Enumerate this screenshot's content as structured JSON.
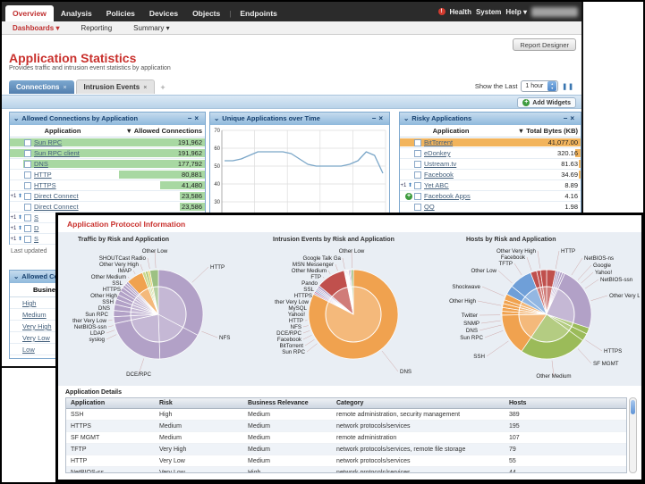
{
  "colors": {
    "accent_red": "#c9302c",
    "nav_bg": "#2b2b2b",
    "widget_border": "#7fa9cf",
    "bar_green": "#a8d8a2",
    "bar_orange": "#f2b45c",
    "link": "#44607c",
    "line_blue": "#7aa6c8",
    "pie_purple": "#b2a1c7",
    "pie_orange": "#f0a24f",
    "pie_red": "#c0504d",
    "pie_green": "#9bbb59",
    "pie_blue": "#6f9fd8"
  },
  "icons": {
    "collapse": "⌄",
    "minimize": "−",
    "close": "×",
    "add": "+",
    "up_arrow": "⬆",
    "pause": "❚❚",
    "health_alert": "!",
    "stepper_up": "▴",
    "stepper_down": "▾",
    "sort_desc": "▼"
  },
  "nav": {
    "tabs": [
      "Overview",
      "Analysis",
      "Policies",
      "Devices",
      "Objects",
      "Endpoints"
    ],
    "active_tab": "Overview",
    "right": {
      "health": "Health",
      "system": "System",
      "help": "Help ▾"
    }
  },
  "subnav": {
    "items": [
      "Dashboards ▾",
      "Reporting",
      "Summary ▾"
    ],
    "active": "Dashboards ▾"
  },
  "report_designer": "Report Designer",
  "page": {
    "title": "Application Statistics",
    "subtitle": "Provides traffic and intrusion event statistics by application"
  },
  "tabbar": {
    "tabs": [
      {
        "label": "Connections",
        "active": true
      },
      {
        "label": "Intrusion Events",
        "active": false
      }
    ]
  },
  "timebar": {
    "label": "Show the Last",
    "value": "1 hour"
  },
  "add_widgets": "Add Widgets",
  "widgets": {
    "allowed": {
      "title": "Allowed Connections by Application",
      "columns": {
        "app": "Application",
        "value": "▼ Allowed Connections"
      },
      "rows": [
        {
          "prefix": "",
          "app": "Sun RPC",
          "value": "191,962",
          "bar": 100
        },
        {
          "prefix": "",
          "app": "Sun RPC client",
          "value": "191,962",
          "bar": 100
        },
        {
          "prefix": "",
          "app": "DNS",
          "value": "177,792",
          "bar": 93
        },
        {
          "prefix": "",
          "app": "HTTP",
          "value": "80,881",
          "bar": 44
        },
        {
          "prefix": "",
          "app": "HTTPS",
          "value": "41,480",
          "bar": 23
        },
        {
          "prefix": "+1",
          "app": "Direct Connect",
          "value": "23,586",
          "bar": 13
        },
        {
          "prefix": "",
          "app": "Direct Connect",
          "value": "23,586",
          "bar": 13
        },
        {
          "prefix": "+1",
          "app": "S",
          "value": "",
          "bar": 0
        },
        {
          "prefix": "+1",
          "app": "D",
          "value": "",
          "bar": 0
        },
        {
          "prefix": "+1",
          "app": "S",
          "value": "",
          "bar": 0
        }
      ]
    },
    "unique": {
      "title": "Unique Applications over Time"
    },
    "risky": {
      "title": "Risky Applications",
      "columns": {
        "app": "Application",
        "value": "▼ Total Bytes (KB)"
      },
      "rows": [
        {
          "prefix": "",
          "app": "BitTorrent",
          "value": "41,077.00",
          "bar": 100
        },
        {
          "prefix": "",
          "app": "eDonkey",
          "value": "320.16",
          "bar": 3
        },
        {
          "prefix": "",
          "app": "Ustream.tv",
          "value": "81.63",
          "bar": 1
        },
        {
          "prefix": "",
          "app": "Facebook",
          "value": "34.69",
          "bar": 1
        },
        {
          "prefix": "+1",
          "app": "Yet ABC",
          "value": "8.89",
          "bar": 0
        },
        {
          "prefix": "add",
          "app": "Facebook Apps",
          "value": "4.16",
          "bar": 0
        },
        {
          "prefix": "",
          "app": "QQ",
          "value": "1.98",
          "bar": 0
        }
      ]
    },
    "business": {
      "title": "Allowed Connections",
      "column": "Business Relevance",
      "rows": [
        "High",
        "Medium",
        "Very High",
        "Very Low",
        "Low"
      ]
    },
    "last_updated": "Last updated"
  },
  "overlay": {
    "title": "Application Protocol Information",
    "details_title": "Application Details",
    "details": {
      "columns": [
        "Application",
        "Risk",
        "Business Relevance",
        "Category",
        "Hosts"
      ],
      "rows": [
        [
          "SSH",
          "High",
          "Medium",
          "remote administration, security management",
          "389"
        ],
        [
          "HTTPS",
          "Medium",
          "Medium",
          "network protocols/services",
          "195"
        ],
        [
          "SF MGMT",
          "Medium",
          "Medium",
          "remote administration",
          "107"
        ],
        [
          "TFTP",
          "Very High",
          "Medium",
          "network protocols/services, remote file storage",
          "79"
        ],
        [
          "HTTP",
          "Very Low",
          "Medium",
          "network protocols/services",
          "55"
        ],
        [
          "NetBIOS-ss",
          "Very Low",
          "High",
          "network protocols/services",
          "44"
        ]
      ]
    }
  },
  "chart_data": [
    {
      "type": "line",
      "title": "Unique Applications over Time",
      "xlabel": "",
      "ylabel": "",
      "ylim": [
        10,
        70
      ],
      "yticks": [
        10,
        20,
        30,
        40,
        50,
        60,
        70
      ],
      "grid": true,
      "values": [
        53,
        53,
        54,
        56,
        58,
        58,
        58,
        58,
        57,
        54,
        51,
        50,
        50,
        50,
        50,
        51,
        53,
        58,
        56,
        46
      ]
    },
    {
      "type": "pie",
      "title": "Traffic by Risk and Application",
      "value_unit": "degrees",
      "slices": [
        {
          "label": "HTTP",
          "value": 118,
          "color": "#b2a1c7"
        },
        {
          "label": "NFS",
          "value": 60,
          "color": "#b2a1c7"
        },
        {
          "label": "DCE/RPC",
          "value": 80,
          "color": "#b2a1c7"
        },
        {
          "label": "syslog",
          "value": 9,
          "color": "#b2a1c7"
        },
        {
          "label": "LDAP",
          "value": 8,
          "color": "#b2a1c7"
        },
        {
          "label": "NetBIOS-ssn",
          "value": 8,
          "color": "#b2a1c7"
        },
        {
          "label": "ther Very Low",
          "value": 7,
          "color": "#b2a1c7"
        },
        {
          "label": "Sun RPC",
          "value": 6,
          "color": "#b2a1c7"
        },
        {
          "label": "DNS",
          "value": 6,
          "color": "#b2a1c7"
        },
        {
          "label": "SSH",
          "value": 5,
          "color": "#b2a1c7"
        },
        {
          "label": "Other High",
          "value": 4,
          "color": "#b2a1c7"
        },
        {
          "label": "HTTPS",
          "value": 3,
          "color": "#b2a1c7"
        },
        {
          "label": "SSL",
          "value": 3,
          "color": "#b2a1c7"
        },
        {
          "label": "Other Medium",
          "value": 22,
          "color": "#f0a24f"
        },
        {
          "label": "IMAP",
          "value": 4,
          "color": "#cbd98d"
        },
        {
          "label": "Other Very High",
          "value": 3,
          "color": "#a8c26a"
        },
        {
          "label": "SHOUTCast Radio",
          "value": 3,
          "color": "#e3d36e"
        },
        {
          "label": "Other Low",
          "value": 11,
          "color": "#9dc183"
        }
      ],
      "labels": [
        {
          "text": "Other Low",
          "x": 106,
          "y": 7,
          "anchor": "middle"
        },
        {
          "text": "SHOUTCast Radio",
          "x": 96,
          "y": 15,
          "anchor": "end"
        },
        {
          "text": "Other Very High",
          "x": 88,
          "y": 22,
          "anchor": "end"
        },
        {
          "text": "IMAP",
          "x": 80,
          "y": 29,
          "anchor": "end"
        },
        {
          "text": "Other Medium",
          "x": 74,
          "y": 36,
          "anchor": "end"
        },
        {
          "text": "SSL",
          "x": 70,
          "y": 43,
          "anchor": "end"
        },
        {
          "text": "HTTPS",
          "x": 68,
          "y": 50,
          "anchor": "end"
        },
        {
          "text": "Other High",
          "x": 64,
          "y": 57,
          "anchor": "end"
        },
        {
          "text": "SSH",
          "x": 60,
          "y": 64,
          "anchor": "end"
        },
        {
          "text": "DNS",
          "x": 56,
          "y": 71,
          "anchor": "end"
        },
        {
          "text": "Sun RPC",
          "x": 54,
          "y": 78,
          "anchor": "end"
        },
        {
          "text": "ther Very Low",
          "x": 52,
          "y": 85,
          "anchor": "end"
        },
        {
          "text": "NetBIOS-ssn",
          "x": 52,
          "y": 92,
          "anchor": "end"
        },
        {
          "text": "LDAP",
          "x": 50,
          "y": 99,
          "anchor": "end"
        },
        {
          "text": "syslog",
          "x": 50,
          "y": 106,
          "anchor": "end"
        },
        {
          "text": "HTTP",
          "x": 168,
          "y": 25,
          "anchor": "start"
        },
        {
          "text": "NFS",
          "x": 178,
          "y": 104,
          "anchor": "start"
        },
        {
          "text": "DCE/RPC",
          "x": 88,
          "y": 145,
          "anchor": "middle"
        }
      ]
    },
    {
      "type": "pie",
      "title": "Intrusion Events by Risk and Application",
      "value_unit": "degrees",
      "slices": [
        {
          "label": "DNS",
          "value": 297,
          "color": "#f0a24f"
        },
        {
          "label": "Sun RPC",
          "value": 2,
          "color": "#b2a1c7"
        },
        {
          "label": "BitTorrent",
          "value": 2,
          "color": "#c97ba4"
        },
        {
          "label": "Facebook",
          "value": 2,
          "color": "#8aa9d6"
        },
        {
          "label": "DCE/RPC",
          "value": 2,
          "color": "#b2a1c7"
        },
        {
          "label": "NFS",
          "value": 2,
          "color": "#b2a1c7"
        },
        {
          "label": "HTTP",
          "value": 3,
          "color": "#b2a1c7"
        },
        {
          "label": "FTP",
          "value": 38,
          "color": "#c0504d"
        },
        {
          "label": "Pando",
          "value": 1,
          "color": "#b2a1c7"
        },
        {
          "label": "SSL",
          "value": 1,
          "color": "#b2a1c7"
        },
        {
          "label": "HTTPS",
          "value": 1,
          "color": "#b2a1c7"
        },
        {
          "label": "MySQL",
          "value": 1,
          "color": "#b2a1c7"
        },
        {
          "label": "Yahoo!",
          "value": 1,
          "color": "#b2a1c7"
        },
        {
          "label": "Other Medium",
          "value": 1,
          "color": "#e8c06a"
        },
        {
          "label": "MSN Messenger",
          "value": 1.5,
          "color": "#b2a1c7"
        },
        {
          "label": "Google Talk Ga",
          "value": 1.5,
          "color": "#b070b0"
        },
        {
          "label": "Other Low",
          "value": 3,
          "color": "#9dc183"
        }
      ],
      "labels": [
        {
          "text": "Other Low",
          "x": 108,
          "y": 7,
          "anchor": "middle"
        },
        {
          "text": "Google Talk Ga",
          "x": 96,
          "y": 15,
          "anchor": "end"
        },
        {
          "text": "MSN Messenger",
          "x": 88,
          "y": 22,
          "anchor": "end"
        },
        {
          "text": "Other Medium",
          "x": 80,
          "y": 29,
          "anchor": "end"
        },
        {
          "text": "FTP",
          "x": 74,
          "y": 36,
          "anchor": "end"
        },
        {
          "text": "Pando",
          "x": 70,
          "y": 43,
          "anchor": "end"
        },
        {
          "text": "SSL",
          "x": 66,
          "y": 50,
          "anchor": "end"
        },
        {
          "text": "HTTPS",
          "x": 64,
          "y": 57,
          "anchor": "end"
        },
        {
          "text": "ther Very Low",
          "x": 60,
          "y": 64,
          "anchor": "end"
        },
        {
          "text": "MySQL",
          "x": 58,
          "y": 71,
          "anchor": "end"
        },
        {
          "text": "Yahoo!",
          "x": 56,
          "y": 78,
          "anchor": "end"
        },
        {
          "text": "HTTP",
          "x": 54,
          "y": 85,
          "anchor": "end"
        },
        {
          "text": "NFS",
          "x": 52,
          "y": 92,
          "anchor": "end"
        },
        {
          "text": "DCE/RPC",
          "x": 52,
          "y": 99,
          "anchor": "end"
        },
        {
          "text": "Facebook",
          "x": 52,
          "y": 106,
          "anchor": "end"
        },
        {
          "text": "BitTorrent",
          "x": 54,
          "y": 113,
          "anchor": "end"
        },
        {
          "text": "Sun RPC",
          "x": 56,
          "y": 120,
          "anchor": "end"
        },
        {
          "text": "DNS",
          "x": 162,
          "y": 142,
          "anchor": "start"
        }
      ]
    },
    {
      "type": "pie",
      "title": "Hosts by Risk and Application",
      "value_unit": "degrees",
      "slices": [
        {
          "label": "HTTP",
          "value": 12,
          "color": "#c0504d"
        },
        {
          "label": "NetBIOS-ns",
          "value": 3,
          "color": "#b2a1c7"
        },
        {
          "label": "Google",
          "value": 3,
          "color": "#b2a1c7"
        },
        {
          "label": "Yahoo!",
          "value": 3,
          "color": "#b2a1c7"
        },
        {
          "label": "NetBIOS-ssn",
          "value": 3,
          "color": "#b2a1c7"
        },
        {
          "label": "Other Very Low",
          "value": 84,
          "color": "#b2a1c7"
        },
        {
          "label": "HTTPS",
          "value": 8,
          "color": "#9bbb59"
        },
        {
          "label": "SF MGMT",
          "value": 10,
          "color": "#9bbb59"
        },
        {
          "label": "Other Medium",
          "value": 88,
          "color": "#9bbb59"
        },
        {
          "label": "SSH",
          "value": 55,
          "color": "#f0a24f"
        },
        {
          "label": "Sun RPC",
          "value": 5,
          "color": "#f0a24f"
        },
        {
          "label": "DNS",
          "value": 5,
          "color": "#f0a24f"
        },
        {
          "label": "SNMP",
          "value": 5,
          "color": "#f0a24f"
        },
        {
          "label": "Twitter",
          "value": 5,
          "color": "#f0a24f"
        },
        {
          "label": "Other High",
          "value": 8,
          "color": "#f0a24f"
        },
        {
          "label": "Shockwave",
          "value": 12,
          "color": "#6f9fd8"
        },
        {
          "label": "Other Low",
          "value": 30,
          "color": "#6f9fd8"
        },
        {
          "label": "TFTP",
          "value": 8,
          "color": "#c0504d"
        },
        {
          "label": "Facebook",
          "value": 5,
          "color": "#c0504d"
        },
        {
          "label": "Other Very High",
          "value": 8,
          "color": "#c0504d"
        }
      ],
      "labels": [
        {
          "text": "HTTP",
          "x": 126,
          "y": 7,
          "anchor": "start"
        },
        {
          "text": "Other Very High",
          "x": 98,
          "y": 7,
          "anchor": "end"
        },
        {
          "text": "Facebook",
          "x": 86,
          "y": 14,
          "anchor": "end"
        },
        {
          "text": "TFTP",
          "x": 72,
          "y": 21,
          "anchor": "end"
        },
        {
          "text": "Other Low",
          "x": 54,
          "y": 29,
          "anchor": "end"
        },
        {
          "text": "Shockwave",
          "x": 36,
          "y": 47,
          "anchor": "end"
        },
        {
          "text": "Other High",
          "x": 31,
          "y": 63,
          "anchor": "end"
        },
        {
          "text": "Twitter",
          "x": 33,
          "y": 79,
          "anchor": "end"
        },
        {
          "text": "SNMP",
          "x": 35,
          "y": 88,
          "anchor": "end"
        },
        {
          "text": "DNS",
          "x": 33,
          "y": 96,
          "anchor": "end"
        },
        {
          "text": "Sun RPC",
          "x": 39,
          "y": 104,
          "anchor": "end"
        },
        {
          "text": "SSH",
          "x": 41,
          "y": 125,
          "anchor": "end"
        },
        {
          "text": "NetBIOS-ns",
          "x": 152,
          "y": 15,
          "anchor": "start"
        },
        {
          "text": "Google",
          "x": 162,
          "y": 23,
          "anchor": "start"
        },
        {
          "text": "Yahoo!",
          "x": 164,
          "y": 31,
          "anchor": "start"
        },
        {
          "text": "NetBIOS-ssn",
          "x": 170,
          "y": 39,
          "anchor": "start"
        },
        {
          "text": "Other Very Low",
          "x": 180,
          "y": 57,
          "anchor": "start"
        },
        {
          "text": "HTTPS",
          "x": 174,
          "y": 119,
          "anchor": "start"
        },
        {
          "text": "SF MGMT",
          "x": 162,
          "y": 133,
          "anchor": "start"
        },
        {
          "text": "Other Medium",
          "x": 118,
          "y": 147,
          "anchor": "middle"
        }
      ]
    }
  ]
}
